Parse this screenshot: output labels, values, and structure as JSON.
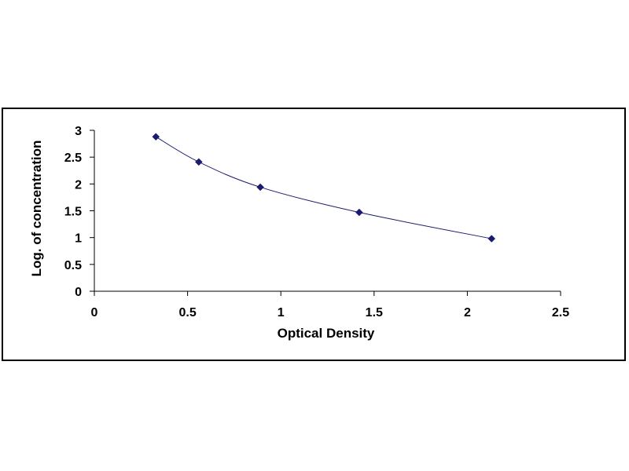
{
  "chart_data": {
    "type": "scatter",
    "xlabel": "Optical Density",
    "ylabel": "Log. of concentration",
    "xlim": [
      0,
      2.5
    ],
    "ylim": [
      0,
      3
    ],
    "x_ticks": [
      "0",
      "0.5",
      "1",
      "1.5",
      "2",
      "2.5"
    ],
    "y_ticks": [
      "0",
      "0.5",
      "1",
      "1.5",
      "2",
      "2.5",
      "3"
    ],
    "grid": false,
    "legend": "none",
    "colors": {
      "marker": "#1a1a6e",
      "curve": "#1a1a6e",
      "axis": "#000000"
    },
    "series": [
      {
        "x": [
          0.33,
          0.56,
          0.89,
          1.42,
          2.13
        ],
        "y": [
          2.88,
          2.41,
          1.94,
          1.47,
          0.98
        ]
      }
    ],
    "trendline": "smooth curve through points"
  }
}
